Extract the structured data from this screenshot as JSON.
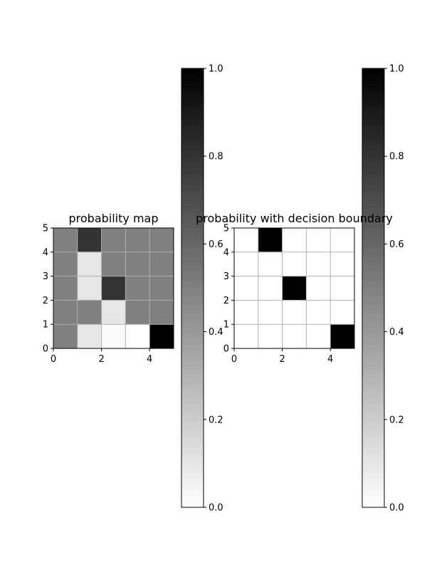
{
  "chart_data": [
    {
      "type": "heatmap",
      "title": "probability map",
      "xlim": [
        0,
        5
      ],
      "ylim": [
        0,
        5
      ],
      "xticks": [
        "0",
        "2",
        "4"
      ],
      "yticks": [
        "0",
        "1",
        "2",
        "3",
        "4",
        "5"
      ],
      "grid": true,
      "colormap": "gray_r",
      "values": [
        [
          0.5,
          0.1,
          0.02,
          0.0,
          1.0
        ],
        [
          0.5,
          0.5,
          0.1,
          0.5,
          0.5
        ],
        [
          0.5,
          0.1,
          0.8,
          0.5,
          0.5
        ],
        [
          0.5,
          0.1,
          0.5,
          0.5,
          0.5
        ],
        [
          0.5,
          0.8,
          0.5,
          0.5,
          0.5
        ]
      ],
      "colorbar": {
        "range": [
          0.0,
          1.0
        ],
        "ticks": [
          "0.0",
          "0.2",
          "0.4",
          "0.6",
          "0.8",
          "1.0"
        ]
      }
    },
    {
      "type": "heatmap",
      "title": "probability with decision boundary",
      "xlim": [
        0,
        5
      ],
      "ylim": [
        0,
        5
      ],
      "xticks": [
        "0",
        "2",
        "4"
      ],
      "yticks": [
        "0",
        "1",
        "2",
        "3",
        "4",
        "5"
      ],
      "grid": true,
      "colormap": "gray_r",
      "values": [
        [
          0,
          0,
          0,
          0,
          1
        ],
        [
          0,
          0,
          0,
          0,
          0
        ],
        [
          0,
          0,
          1,
          0,
          0
        ],
        [
          0,
          0,
          0,
          0,
          0
        ],
        [
          0,
          1,
          0,
          0,
          0
        ]
      ],
      "colorbar": {
        "range": [
          0.0,
          1.0
        ],
        "ticks": [
          "0.0",
          "0.2",
          "0.4",
          "0.6",
          "0.8",
          "1.0"
        ]
      }
    }
  ]
}
